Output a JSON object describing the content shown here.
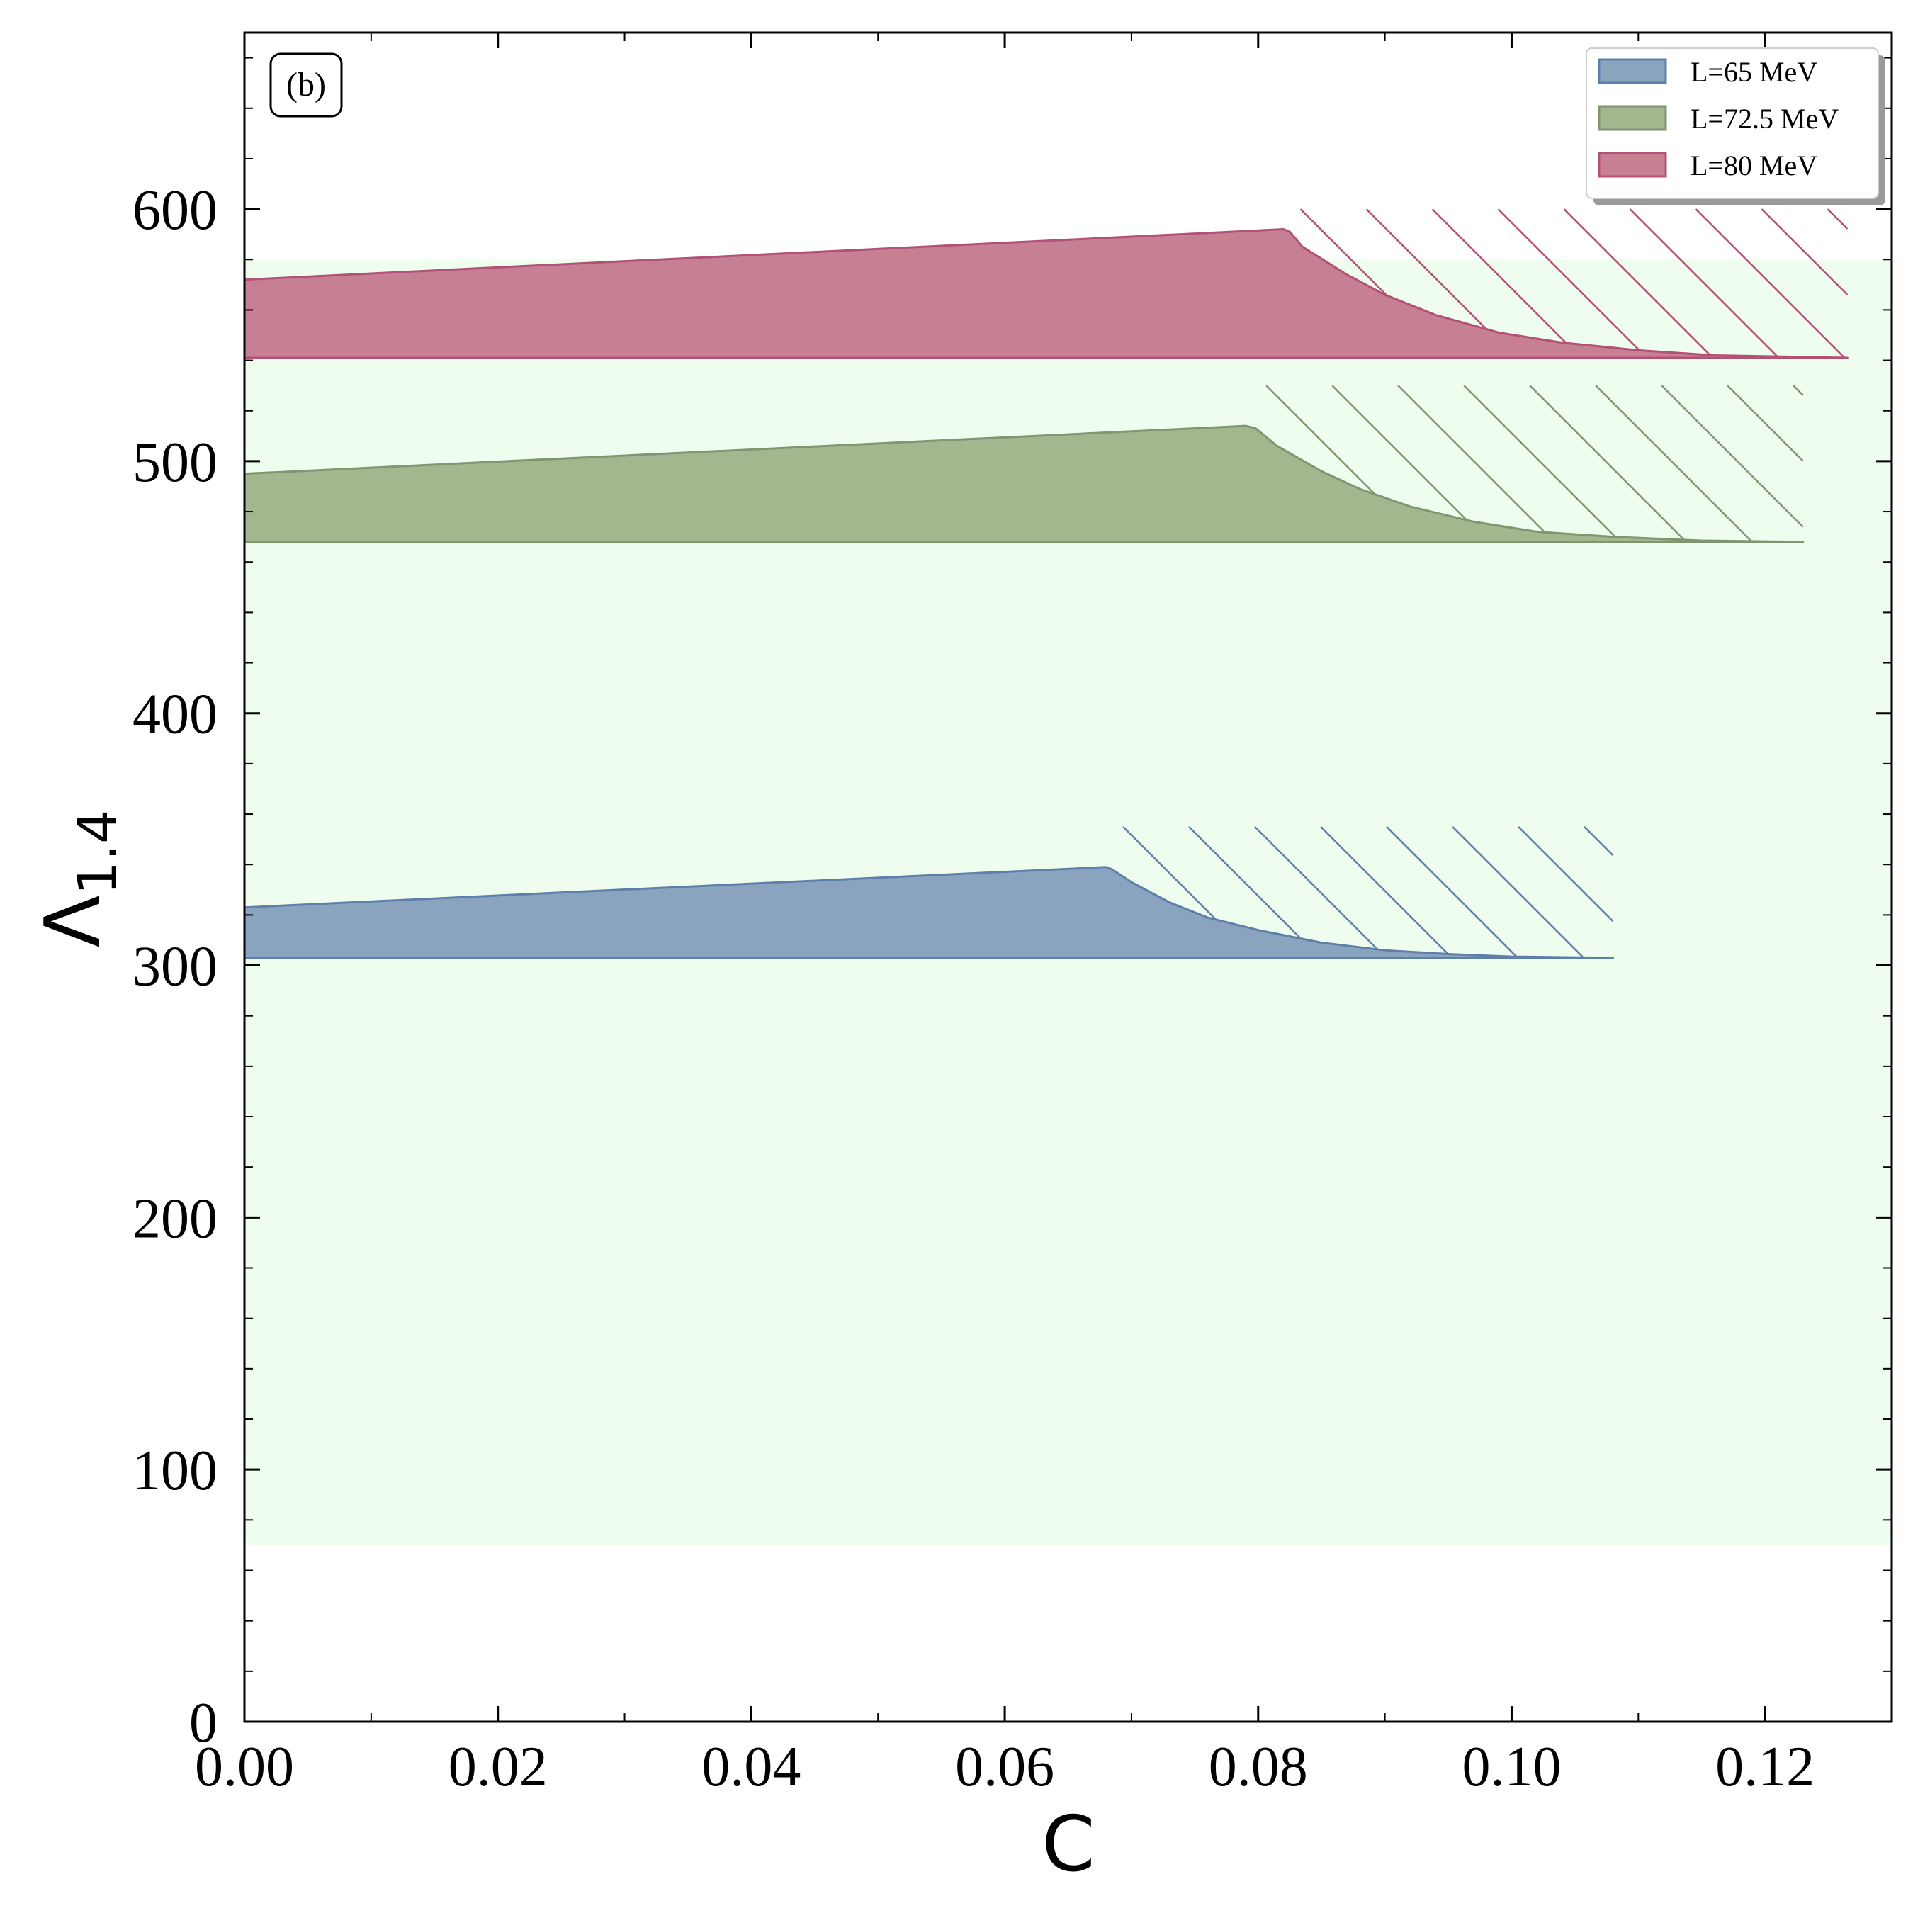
{
  "chart_data": {
    "type": "area",
    "panel_label": "(b)",
    "xlabel": "C",
    "ylabel_main": "Λ",
    "ylabel_sub": "1.4",
    "xlim": [
      0,
      0.13
    ],
    "ylim": [
      0,
      670
    ],
    "x_ticks": [
      0.0,
      0.02,
      0.04,
      0.06,
      0.08,
      0.1,
      0.12
    ],
    "x_tick_labels": [
      "0.00",
      "0.02",
      "0.04",
      "0.06",
      "0.08",
      "0.10",
      "0.12"
    ],
    "y_ticks": [
      0,
      100,
      200,
      300,
      400,
      500,
      600
    ],
    "y_tick_labels": [
      "0",
      "100",
      "200",
      "300",
      "400",
      "500",
      "600"
    ],
    "constraint_band": {
      "ymin": 70,
      "ymax": 580,
      "color": "#eefded"
    },
    "legend_position": "top-right",
    "series": [
      {
        "name": "L=65 MeV",
        "color": "#5f7fab",
        "fill": "#8aa3bf",
        "baseline": 303,
        "upper": [
          [
            0,
            323
          ],
          [
            0.068,
            339
          ],
          [
            0.0685,
            338
          ],
          [
            0.07,
            333
          ],
          [
            0.073,
            325
          ],
          [
            0.076,
            319
          ],
          [
            0.08,
            314
          ],
          [
            0.085,
            309
          ],
          [
            0.09,
            306
          ],
          [
            0.095,
            304.5
          ],
          [
            0.1,
            303.5
          ],
          [
            0.108,
            303
          ]
        ],
        "hatch_x": [
          0.0685,
          0.108
        ],
        "hatch_top": 355
      },
      {
        "name": "L=72.5 MeV",
        "color": "#7f9670",
        "fill": "#a3b78f",
        "baseline": 468,
        "upper": [
          [
            0,
            495
          ],
          [
            0.079,
            514
          ],
          [
            0.0798,
            513
          ],
          [
            0.0815,
            506
          ],
          [
            0.085,
            496
          ],
          [
            0.088,
            489
          ],
          [
            0.092,
            482
          ],
          [
            0.097,
            476
          ],
          [
            0.102,
            472
          ],
          [
            0.108,
            470
          ],
          [
            0.115,
            468.5
          ],
          [
            0.123,
            468
          ]
        ],
        "hatch_x": [
          0.0798,
          0.123
        ],
        "hatch_top": 530
      },
      {
        "name": "L=80 MeV",
        "color": "#b35076",
        "fill": "#c77f94",
        "baseline": 541,
        "upper": [
          [
            0,
            572
          ],
          [
            0.082,
            592
          ],
          [
            0.0825,
            591
          ],
          [
            0.0835,
            585
          ],
          [
            0.087,
            574
          ],
          [
            0.09,
            566
          ],
          [
            0.094,
            558
          ],
          [
            0.099,
            551
          ],
          [
            0.104,
            547
          ],
          [
            0.11,
            544
          ],
          [
            0.116,
            542
          ],
          [
            0.1265,
            541
          ]
        ],
        "hatch_x": [
          0.0825,
          0.1265
        ],
        "hatch_top": 600
      }
    ]
  }
}
